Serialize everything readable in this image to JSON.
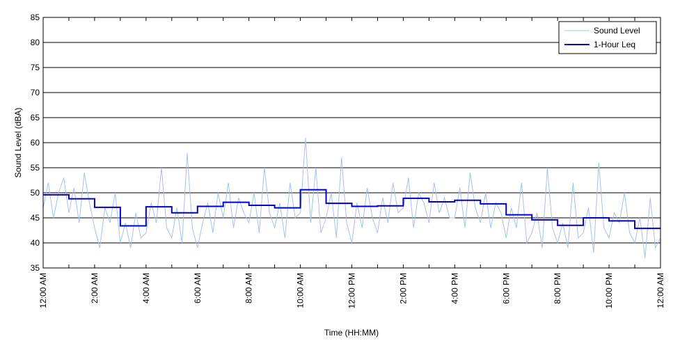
{
  "chart_data": {
    "type": "line",
    "xlabel": "Time (HH:MM)",
    "ylabel": "Sound Level (dBA)",
    "xlim": [
      0,
      24
    ],
    "ylim": [
      35,
      85
    ],
    "yticks": [
      35,
      40,
      45,
      50,
      55,
      60,
      65,
      70,
      75,
      80,
      85
    ],
    "xticks": [
      {
        "value": 0,
        "label": "12:00 AM"
      },
      {
        "value": 2,
        "label": "2:00 AM"
      },
      {
        "value": 4,
        "label": "4:00 AM"
      },
      {
        "value": 6,
        "label": "6:00 AM"
      },
      {
        "value": 8,
        "label": "8:00 AM"
      },
      {
        "value": 10,
        "label": "10:00 AM"
      },
      {
        "value": 12,
        "label": "12:00 PM"
      },
      {
        "value": 14,
        "label": "2:00 PM"
      },
      {
        "value": 16,
        "label": "4:00 PM"
      },
      {
        "value": 18,
        "label": "6:00 PM"
      },
      {
        "value": 20,
        "label": "8:00 PM"
      },
      {
        "value": 22,
        "label": "10:00 PM"
      },
      {
        "value": 24,
        "label": "12:00 AM"
      }
    ],
    "xminor_ticks": [
      1,
      3,
      5,
      7,
      9,
      11,
      13,
      15,
      17,
      19,
      21,
      23
    ],
    "grid": true,
    "legend": "upper right",
    "series": [
      {
        "name": "Sound Level",
        "color": "#a8c0f0",
        "style": "line",
        "x": [
          0,
          0.2,
          0.4,
          0.6,
          0.8,
          1,
          1.2,
          1.4,
          1.6,
          1.8,
          2,
          2.2,
          2.4,
          2.6,
          2.8,
          3,
          3.2,
          3.4,
          3.6,
          3.8,
          4,
          4.2,
          4.4,
          4.6,
          4.8,
          5,
          5.2,
          5.4,
          5.6,
          5.8,
          6,
          6.2,
          6.4,
          6.6,
          6.8,
          7,
          7.2,
          7.4,
          7.6,
          7.8,
          8,
          8.2,
          8.4,
          8.6,
          8.8,
          9,
          9.2,
          9.4,
          9.6,
          9.8,
          10,
          10.2,
          10.4,
          10.6,
          10.8,
          11,
          11.2,
          11.4,
          11.6,
          11.8,
          12,
          12.2,
          12.4,
          12.6,
          12.8,
          13,
          13.2,
          13.4,
          13.6,
          13.8,
          14,
          14.2,
          14.4,
          14.6,
          14.8,
          15,
          15.2,
          15.4,
          15.6,
          15.8,
          16,
          16.2,
          16.4,
          16.6,
          16.8,
          17,
          17.2,
          17.4,
          17.6,
          17.8,
          18,
          18.2,
          18.4,
          18.6,
          18.8,
          19,
          19.2,
          19.4,
          19.6,
          19.8,
          20,
          20.2,
          20.4,
          20.6,
          20.8,
          21,
          21.2,
          21.4,
          21.6,
          21.8,
          22,
          22.2,
          22.4,
          22.6,
          22.8,
          23,
          23.2,
          23.4,
          23.6,
          23.8,
          24
        ],
        "values": [
          47,
          52,
          45,
          50,
          53,
          46,
          51,
          44,
          54,
          48,
          43,
          39,
          47,
          44,
          50,
          40,
          44,
          39,
          46,
          41,
          42,
          48,
          44,
          55,
          43,
          41,
          47,
          40,
          58,
          43,
          39,
          44,
          48,
          42,
          50,
          45,
          52,
          43,
          49,
          46,
          44,
          50,
          42,
          55,
          46,
          43,
          48,
          41,
          52,
          45,
          46,
          61,
          44,
          55,
          42,
          45,
          50,
          41,
          57,
          44,
          40,
          48,
          43,
          51,
          45,
          42,
          49,
          44,
          52,
          46,
          47,
          53,
          43,
          50,
          48,
          44,
          52,
          46,
          49,
          45,
          45,
          51,
          43,
          54,
          47,
          44,
          50,
          43,
          48,
          46,
          41,
          47,
          43,
          52,
          40,
          42,
          46,
          39,
          55,
          43,
          40,
          44,
          39,
          52,
          41,
          42,
          47,
          38,
          56,
          43,
          41,
          46,
          44,
          50,
          42,
          40,
          45,
          37,
          49,
          39,
          41
        ]
      },
      {
        "name": "1-Hour Leq",
        "color": "#0000c8",
        "style": "step",
        "x": [
          0,
          1,
          2,
          3,
          4,
          5,
          6,
          7,
          8,
          9,
          10,
          11,
          12,
          13,
          14,
          15,
          16,
          17,
          18,
          19,
          20,
          21,
          22,
          23
        ],
        "values": [
          49.6,
          48.8,
          47.1,
          43.4,
          47.2,
          46.0,
          47.3,
          48.1,
          47.5,
          47.0,
          50.6,
          47.9,
          47.3,
          47.4,
          48.9,
          48.2,
          48.5,
          47.8,
          45.6,
          44.6,
          43.5,
          45.0,
          44.4,
          42.9
        ]
      }
    ]
  }
}
